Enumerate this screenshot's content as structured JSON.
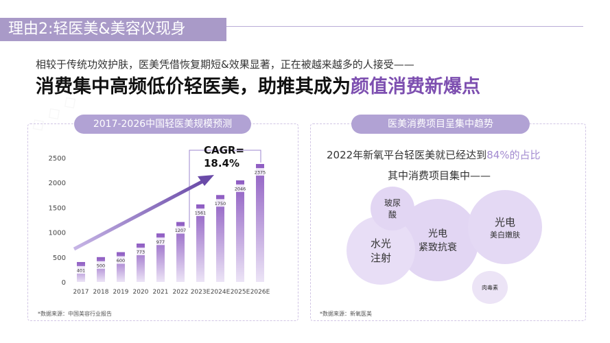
{
  "header": {
    "title": "理由2:轻医美&美容仪现身",
    "subtitle": "相较于传统功效护肤，医美凭借恢复期短&效果显著，正在被越来越多的人接受——",
    "headline_main": "消费集中高频低价轻医美，助推其成为",
    "headline_accent": "颜值消费新爆点"
  },
  "left_panel": {
    "pill_label": "2017-2026中国轻医美规模预测",
    "cagr_label": "CAGR=",
    "cagr_value": "18.4%",
    "source": "*数据来源：中国美容行业报告"
  },
  "chart_data": {
    "type": "bar",
    "title": "2017-2026中国轻医美规模预测",
    "categories": [
      "2017",
      "2018",
      "2019",
      "2020",
      "2021",
      "2022",
      "2023E",
      "2024E",
      "2025E",
      "2026E"
    ],
    "values": [
      401,
      500,
      600,
      773,
      977,
      1207,
      1561,
      1750,
      2046,
      2375
    ],
    "data_labels": [
      "401",
      "500",
      "600",
      "773",
      "977",
      "1207",
      "1561",
      "1750",
      "2046",
      "2375"
    ],
    "yticks": [
      "0",
      "500",
      "1000",
      "1500",
      "2000",
      "2500"
    ],
    "ylim": [
      0,
      2500
    ],
    "bar_color_top": "#8e5cc2",
    "bar_color_bottom": "#ece4f6",
    "grid": false
  },
  "right_panel": {
    "pill_label": "医美消费项目呈集中趋势",
    "fact_prefix": "2022年新氧平台轻医美就已经达到",
    "fact_pct": "84%的占比",
    "fact_line2": "其中消费项目集中——",
    "source": "*数据来源：新氧医美",
    "bubbles": [
      {
        "line1": "玻尿",
        "line2": "酸"
      },
      {
        "line1": "水光",
        "line2": "注射"
      },
      {
        "line1": "光电",
        "line2": "紧致抗衰"
      },
      {
        "line1": "光电",
        "line2": "美白嫩肤"
      },
      {
        "line1": "肉毒素",
        "line2": ""
      }
    ]
  },
  "colors": {
    "title_bar": "#a99ac8",
    "accent": "#7d4fb0",
    "pill": "#b1a2d4",
    "bubble": "#e6dcf4"
  }
}
